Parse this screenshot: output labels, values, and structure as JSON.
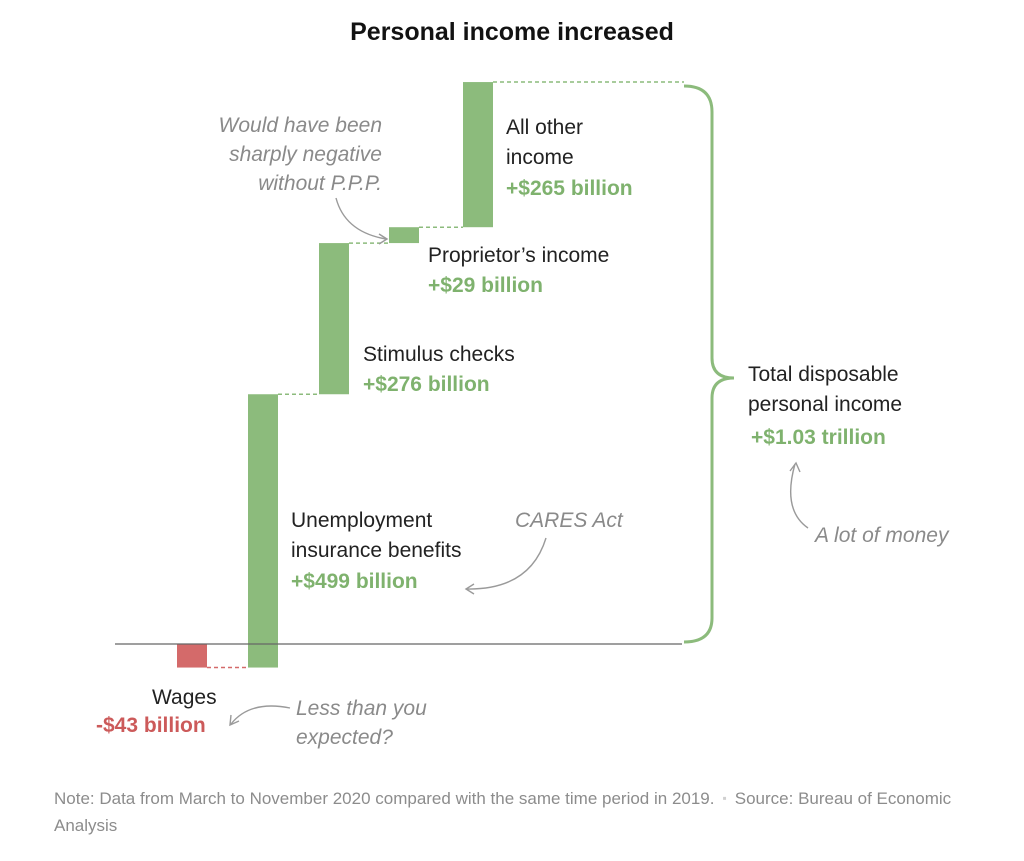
{
  "colors": {
    "positive": "#8cbb7c",
    "negative": "#d46a6a",
    "positive_text": "#7fb26e",
    "negative_text": "#cc5a5a",
    "annotation": "#8a8a8a",
    "axis": "#666666"
  },
  "chart_data": {
    "type": "waterfall",
    "title": "Personal income increased",
    "unit": "billion dollars",
    "steps": [
      {
        "label": "Wages",
        "value": -43,
        "value_label": "-$43 billion"
      },
      {
        "label": "Unemployment insurance benefits",
        "label_lines": [
          "Unemployment",
          "insurance benefits"
        ],
        "value": 499,
        "value_label": "+$499 billion"
      },
      {
        "label": "Stimulus checks",
        "label_lines": [
          "Stimulus checks"
        ],
        "value": 276,
        "value_label": "+$276 billion"
      },
      {
        "label": "Proprietor’s income",
        "label_lines": [
          "Proprietor’s income"
        ],
        "value": 29,
        "value_label": "+$29 billion"
      },
      {
        "label": "All other income",
        "label_lines": [
          "All other",
          "income"
        ],
        "value": 265,
        "value_label": "+$265 billion"
      }
    ],
    "total": {
      "label_lines": [
        "Total disposable",
        "personal income"
      ],
      "value_label": "+$1.03 trillion"
    },
    "annotations": {
      "ppp": [
        "Would have been",
        "sharply negative",
        "without P.P.P."
      ],
      "cares": "CARES Act",
      "money": "A lot of money",
      "wages": [
        "Less than you",
        "expected?"
      ]
    }
  },
  "note": {
    "text": "Note: Data from March to November 2020 compared with the same time period in 2019.",
    "separator": "▪",
    "source": "Source: Bureau of Economic Analysis"
  }
}
